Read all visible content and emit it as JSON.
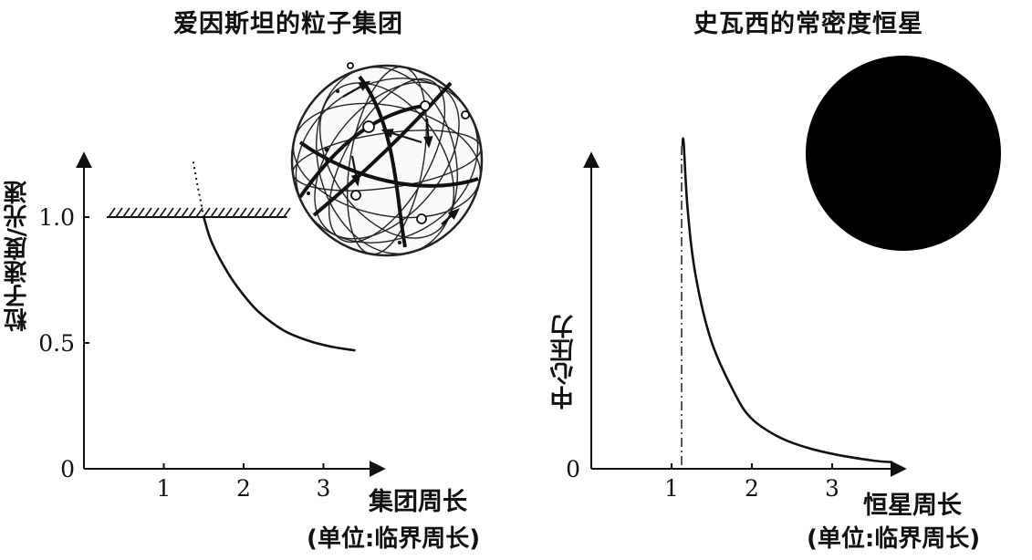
{
  "chart_data": [
    {
      "type": "line",
      "title": "爱因斯坦的粒子集团",
      "ylabel": "粒子速度/光速",
      "xlabel": "集团周长",
      "xunit": "(单位:临界周长)",
      "xticks": [
        "1",
        "2",
        "3"
      ],
      "yticks": [
        "0",
        "0.5",
        "1.0"
      ],
      "xlim": [
        0,
        4.0
      ],
      "ylim": [
        0,
        1.25
      ],
      "limit_line": {
        "y": 1.0,
        "x": [
          0.2,
          2.2
        ],
        "hatched": true
      },
      "series": [
        {
          "x": [
            1.5,
            1.6,
            1.8,
            2.0,
            2.2,
            2.5,
            2.8,
            3.1,
            3.4
          ],
          "y": [
            1.0,
            0.9,
            0.78,
            0.69,
            0.62,
            0.55,
            0.51,
            0.485,
            0.47
          ]
        }
      ],
      "dotted_extension": {
        "x": [
          1.37,
          1.42,
          1.47,
          1.5
        ],
        "y": [
          1.22,
          1.13,
          1.05,
          1.0
        ]
      },
      "illustration": "particle-cluster-sphere-icon"
    },
    {
      "type": "line",
      "title": "史瓦西的常密度恒星",
      "ylabel": "中心压力",
      "xlabel": "恒星周长",
      "xunit": "(单位:临界周长)",
      "xticks": [
        "1",
        "2",
        "3"
      ],
      "yticks": [
        "0"
      ],
      "xlim": [
        0,
        4.0
      ],
      "ylim": [
        0,
        1.0
      ],
      "asymptote_x": 1.125,
      "series": [
        {
          "x": [
            1.15,
            1.2,
            1.3,
            1.5,
            1.8,
            2.0,
            2.3,
            2.6,
            3.0,
            3.5,
            3.75
          ],
          "y": [
            0.98,
            0.78,
            0.58,
            0.38,
            0.22,
            0.15,
            0.1,
            0.07,
            0.045,
            0.025,
            0.02
          ]
        }
      ],
      "illustration": "black-star-disc-icon",
      "colors": {
        "star": "#000000"
      }
    }
  ]
}
